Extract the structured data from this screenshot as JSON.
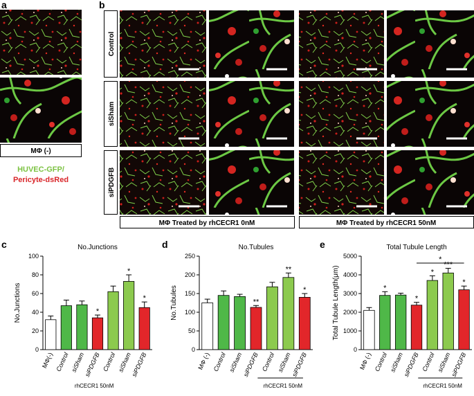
{
  "panel_a": {
    "label": "a",
    "caption": "MΦ (-)",
    "legend": [
      "HUVEC-GFP/",
      "Pericyte-dsRed"
    ]
  },
  "panel_b": {
    "label": "b",
    "rows": [
      "Control",
      "siSham",
      "siPDGFB"
    ],
    "groups": [
      "MΦ Treated by rhCECR1 0nM",
      "MΦ Treated by rhCECR1 50nM"
    ]
  },
  "chart_data": [
    {
      "type": "bar",
      "panel": "c",
      "title": "No.Junctions",
      "y_label": "No.Junctions",
      "categories": [
        "MΦ(-)",
        "Control",
        "siSham",
        "siPDGFB",
        "Control",
        "siSham",
        "siPDGFB"
      ],
      "values": [
        32,
        47,
        48,
        34,
        62,
        73,
        45
      ],
      "errors": [
        4,
        6,
        4,
        3,
        6,
        7,
        6
      ],
      "colors": [
        "#ffffff",
        "#4fb848",
        "#4fb848",
        "#e2262a",
        "#8cca4e",
        "#8cca4e",
        "#e2262a"
      ],
      "ylim": [
        0,
        100
      ],
      "yticks": [
        0,
        20,
        40,
        60,
        80,
        100
      ],
      "significance": [
        {
          "index": 3,
          "text": "*"
        },
        {
          "index": 5,
          "text": "*"
        },
        {
          "index": 6,
          "text": "*"
        }
      ],
      "note": "rhCECR1 50nM"
    },
    {
      "type": "bar",
      "panel": "d",
      "title": "No.Tubules",
      "y_label": "No.Tubules",
      "categories": [
        "MΦ (-)",
        "Control",
        "siSham",
        "siPDGFB",
        "Control",
        "siSham",
        "siPDGFB"
      ],
      "values": [
        125,
        145,
        142,
        113,
        168,
        193,
        140
      ],
      "errors": [
        10,
        12,
        6,
        5,
        12,
        12,
        10
      ],
      "colors": [
        "#ffffff",
        "#4fb848",
        "#4fb848",
        "#e2262a",
        "#8cca4e",
        "#8cca4e",
        "#e2262a"
      ],
      "ylim": [
        0,
        250
      ],
      "yticks": [
        0,
        50,
        100,
        150,
        200,
        250
      ],
      "significance": [
        {
          "index": 3,
          "text": "**"
        },
        {
          "index": 5,
          "text": "**"
        },
        {
          "index": 6,
          "text": "*"
        }
      ],
      "note": "rhCECR1 50nM",
      "underline": true
    },
    {
      "type": "bar",
      "panel": "e",
      "title": "Total Tubule Length",
      "y_label": "Total Tubule Length(μm)",
      "categories": [
        "MΦ (-)",
        "Control",
        "siSham",
        "siPDGFB",
        "Control",
        "siSham",
        "siPDGFB"
      ],
      "values": [
        2100,
        2900,
        2920,
        2380,
        3700,
        4100,
        3200
      ],
      "errors": [
        150,
        200,
        100,
        150,
        250,
        250,
        200
      ],
      "colors": [
        "#ffffff",
        "#4fb848",
        "#4fb848",
        "#e2262a",
        "#8cca4e",
        "#8cca4e",
        "#e2262a"
      ],
      "ylim": [
        0,
        5000
      ],
      "yticks": [
        0,
        1000,
        2000,
        3000,
        4000,
        5000
      ],
      "significance": [
        {
          "index": 1,
          "text": "*"
        },
        {
          "index": 3,
          "text": "*"
        },
        {
          "index": 4,
          "text": "*"
        },
        {
          "index": 5,
          "text": "***"
        },
        {
          "index": 6,
          "text": "*"
        }
      ],
      "bracket": {
        "from": 3,
        "to": 6,
        "text": "*"
      },
      "note": "rhCECR1 50nM",
      "underline": true
    }
  ]
}
